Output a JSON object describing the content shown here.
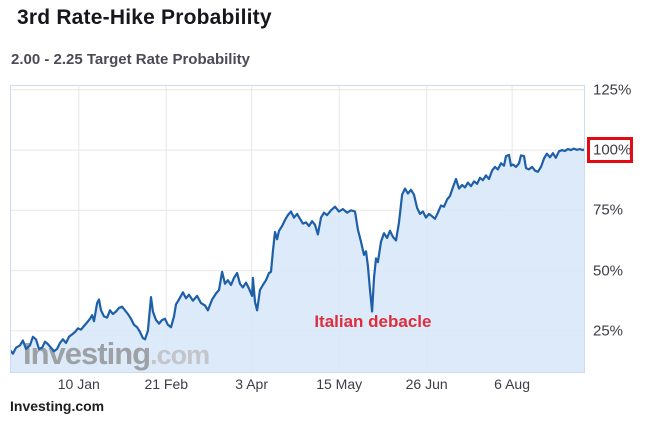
{
  "header": {
    "title": "3rd Rate-Hike Probability",
    "subtitle": "2.00 - 2.25 Target Rate Probability"
  },
  "footer": {
    "source": "Investing.com"
  },
  "watermark": {
    "brand": "Investing",
    "suffix": ".com"
  },
  "annotation": {
    "text": "Italian debacle",
    "day": 174.2,
    "value": 28.5
  },
  "highlight": {
    "label": "100%"
  },
  "colors": {
    "line": "#1d5fa8",
    "fill": "#d8e8f8",
    "grid": "#e7e7e7",
    "plot_border": "#cadcef",
    "axis_text": "#3d3d46",
    "annotation_red": "#dd2e3e",
    "highlight_box_red": "#e30b13",
    "watermark_brand": "#8e8e90",
    "watermark_suffix": "#bdbdbf"
  },
  "chart_data": {
    "type": "area",
    "title": "3rd Rate-Hike Probability",
    "subtitle": "2.00 - 2.25 Target Rate Probability",
    "unit": "%",
    "grid": true,
    "legend": "none",
    "y_axis_side": "right",
    "xlim_days": [
      0,
      276
    ],
    "ylim": [
      7.5,
      127
    ],
    "x_ticks": {
      "labels": [
        "10 Jan",
        "21 Feb",
        "3 Apr",
        "15 May",
        "26 Jun",
        "6 Aug"
      ],
      "days": [
        33,
        75,
        116,
        158,
        200,
        241
      ]
    },
    "y_ticks": {
      "labels": [
        "25%",
        "50%",
        "75%",
        "100%",
        "125%"
      ],
      "values": [
        25,
        50,
        75,
        100,
        125
      ],
      "highlighted": "100%"
    },
    "series": [
      {
        "name": "2.00 - 2.25 Target Rate Probability",
        "points": [
          [
            0,
            17
          ],
          [
            1.4,
            15.5
          ],
          [
            2.9,
            18
          ],
          [
            4.8,
            19
          ],
          [
            6.2,
            21
          ],
          [
            7.7,
            17.5
          ],
          [
            9.6,
            19
          ],
          [
            11,
            22.5
          ],
          [
            12.5,
            21.5
          ],
          [
            13.9,
            17.5
          ],
          [
            15.4,
            18
          ],
          [
            16.8,
            20.5
          ],
          [
            18.2,
            19.5
          ],
          [
            19.7,
            18
          ],
          [
            21.1,
            16.5
          ],
          [
            22.6,
            17.5
          ],
          [
            24,
            20
          ],
          [
            25.4,
            21.5
          ],
          [
            26.9,
            20
          ],
          [
            28.3,
            22.5
          ],
          [
            29.8,
            23.5
          ],
          [
            31.2,
            24.5
          ],
          [
            32.6,
            26
          ],
          [
            34.1,
            25.5
          ],
          [
            35.5,
            27
          ],
          [
            37,
            28.5
          ],
          [
            38.4,
            30
          ],
          [
            39.4,
            31.5
          ],
          [
            40.3,
            29
          ],
          [
            41.8,
            36.5
          ],
          [
            42.7,
            38
          ],
          [
            43.7,
            33.5
          ],
          [
            45.1,
            31
          ],
          [
            46.6,
            30.5
          ],
          [
            48,
            33.5
          ],
          [
            49.4,
            32
          ],
          [
            50.9,
            33
          ],
          [
            52.3,
            34.5
          ],
          [
            53.8,
            35
          ],
          [
            55.2,
            33.5
          ],
          [
            56.6,
            32
          ],
          [
            58.1,
            30
          ],
          [
            59.5,
            27.5
          ],
          [
            61,
            26.5
          ],
          [
            62.4,
            24.5
          ],
          [
            63.8,
            22
          ],
          [
            64.8,
            21.5
          ],
          [
            66.2,
            25
          ],
          [
            67.7,
            39
          ],
          [
            68.6,
            33
          ],
          [
            70.1,
            29.5
          ],
          [
            71.5,
            28
          ],
          [
            73,
            29.5
          ],
          [
            74.4,
            30
          ],
          [
            75.8,
            27.5
          ],
          [
            77.3,
            26.5
          ],
          [
            78.7,
            31
          ],
          [
            79.7,
            36
          ],
          [
            81.1,
            38
          ],
          [
            83,
            41
          ],
          [
            84.5,
            38.5
          ],
          [
            85.9,
            40
          ],
          [
            87.8,
            37.5
          ],
          [
            89.8,
            39.5
          ],
          [
            91.7,
            36.5
          ],
          [
            93.6,
            35.5
          ],
          [
            95,
            33.5
          ],
          [
            97,
            38
          ],
          [
            98.9,
            40.5
          ],
          [
            100.3,
            42
          ],
          [
            101.8,
            49.5
          ],
          [
            103.2,
            44.5
          ],
          [
            104.6,
            46
          ],
          [
            106.1,
            44
          ],
          [
            107.5,
            47
          ],
          [
            109,
            49
          ],
          [
            110.4,
            44.5
          ],
          [
            111.8,
            43
          ],
          [
            113.3,
            45
          ],
          [
            114.7,
            42.5
          ],
          [
            116.2,
            39.5
          ],
          [
            116.6,
            47
          ],
          [
            117.6,
            37
          ],
          [
            118.6,
            33.5
          ],
          [
            120,
            42
          ],
          [
            121.4,
            44
          ],
          [
            122.9,
            46
          ],
          [
            124.3,
            49
          ],
          [
            125.3,
            49.5
          ],
          [
            126.2,
            58
          ],
          [
            127.2,
            66
          ],
          [
            128.2,
            63
          ],
          [
            129.1,
            66.5
          ],
          [
            130.6,
            68.5
          ],
          [
            132,
            71
          ],
          [
            133.4,
            73
          ],
          [
            134.9,
            74.5
          ],
          [
            136.3,
            72
          ],
          [
            137.8,
            73.5
          ],
          [
            139.2,
            71.5
          ],
          [
            140.6,
            69.5
          ],
          [
            142.1,
            70
          ],
          [
            143.5,
            68.5
          ],
          [
            145,
            70.5
          ],
          [
            146.4,
            69
          ],
          [
            147.8,
            65
          ],
          [
            149.3,
            72
          ],
          [
            150.7,
            74
          ],
          [
            152.2,
            73
          ],
          [
            154.1,
            75
          ],
          [
            156,
            76.5
          ],
          [
            157.9,
            74.5
          ],
          [
            159.8,
            75.5
          ],
          [
            161.8,
            74
          ],
          [
            163.7,
            75
          ],
          [
            165.6,
            74.5
          ],
          [
            167,
            67
          ],
          [
            168.5,
            62
          ],
          [
            169.9,
            56.5
          ],
          [
            170.9,
            58
          ],
          [
            171.8,
            52
          ],
          [
            172.8,
            42
          ],
          [
            173.8,
            33
          ],
          [
            174.7,
            47
          ],
          [
            175.7,
            55
          ],
          [
            176.6,
            53.5
          ],
          [
            178.1,
            62
          ],
          [
            179.5,
            65.5
          ],
          [
            181,
            63.5
          ],
          [
            182.4,
            66.5
          ],
          [
            183.8,
            64
          ],
          [
            185.3,
            62.5
          ],
          [
            186.7,
            70
          ],
          [
            188.2,
            81.5
          ],
          [
            189.6,
            84
          ],
          [
            191,
            82
          ],
          [
            192.5,
            83.5
          ],
          [
            193.9,
            81.5
          ],
          [
            195.4,
            76
          ],
          [
            196.8,
            73.5
          ],
          [
            198.2,
            74.5
          ],
          [
            199.7,
            72
          ],
          [
            201.1,
            73.5
          ],
          [
            202.6,
            72.5
          ],
          [
            204,
            71.5
          ],
          [
            205.4,
            74
          ],
          [
            206.9,
            77
          ],
          [
            208.3,
            76.5
          ],
          [
            209.8,
            79.5
          ],
          [
            211.2,
            81
          ],
          [
            212.6,
            84.5
          ],
          [
            214.1,
            88
          ],
          [
            215.5,
            84
          ],
          [
            217,
            85.5
          ],
          [
            218.4,
            84.5
          ],
          [
            219.8,
            86.5
          ],
          [
            221.3,
            85
          ],
          [
            222.7,
            87
          ],
          [
            224.2,
            86
          ],
          [
            225.6,
            88.5
          ],
          [
            227,
            87.5
          ],
          [
            228.5,
            89.5
          ],
          [
            229.9,
            88
          ],
          [
            231.4,
            91.5
          ],
          [
            232.8,
            93
          ],
          [
            234.2,
            92
          ],
          [
            235.7,
            94.5
          ],
          [
            237.1,
            93.5
          ],
          [
            238.1,
            97.5
          ],
          [
            239.5,
            98
          ],
          [
            240.5,
            93.5
          ],
          [
            241.4,
            94
          ],
          [
            242.9,
            93
          ],
          [
            244.3,
            94.5
          ],
          [
            245.3,
            97.8
          ],
          [
            246.7,
            97.5
          ],
          [
            247.7,
            92.5
          ],
          [
            249.1,
            92
          ],
          [
            250.6,
            93
          ],
          [
            252,
            91.5
          ],
          [
            253.4,
            91
          ],
          [
            254.9,
            93
          ],
          [
            256.3,
            96.5
          ],
          [
            257.7,
            98.5
          ],
          [
            259.2,
            97
          ],
          [
            260.6,
            98.7
          ],
          [
            262,
            96.8
          ],
          [
            263.5,
            99.5
          ],
          [
            264.9,
            100
          ],
          [
            266.3,
            99.6
          ],
          [
            267.8,
            100.4
          ],
          [
            269.2,
            100
          ],
          [
            270.6,
            100.6
          ],
          [
            272.1,
            100.1
          ],
          [
            273.5,
            100.4
          ],
          [
            274.9,
            100
          ],
          [
            276,
            100.3
          ]
        ]
      }
    ]
  }
}
